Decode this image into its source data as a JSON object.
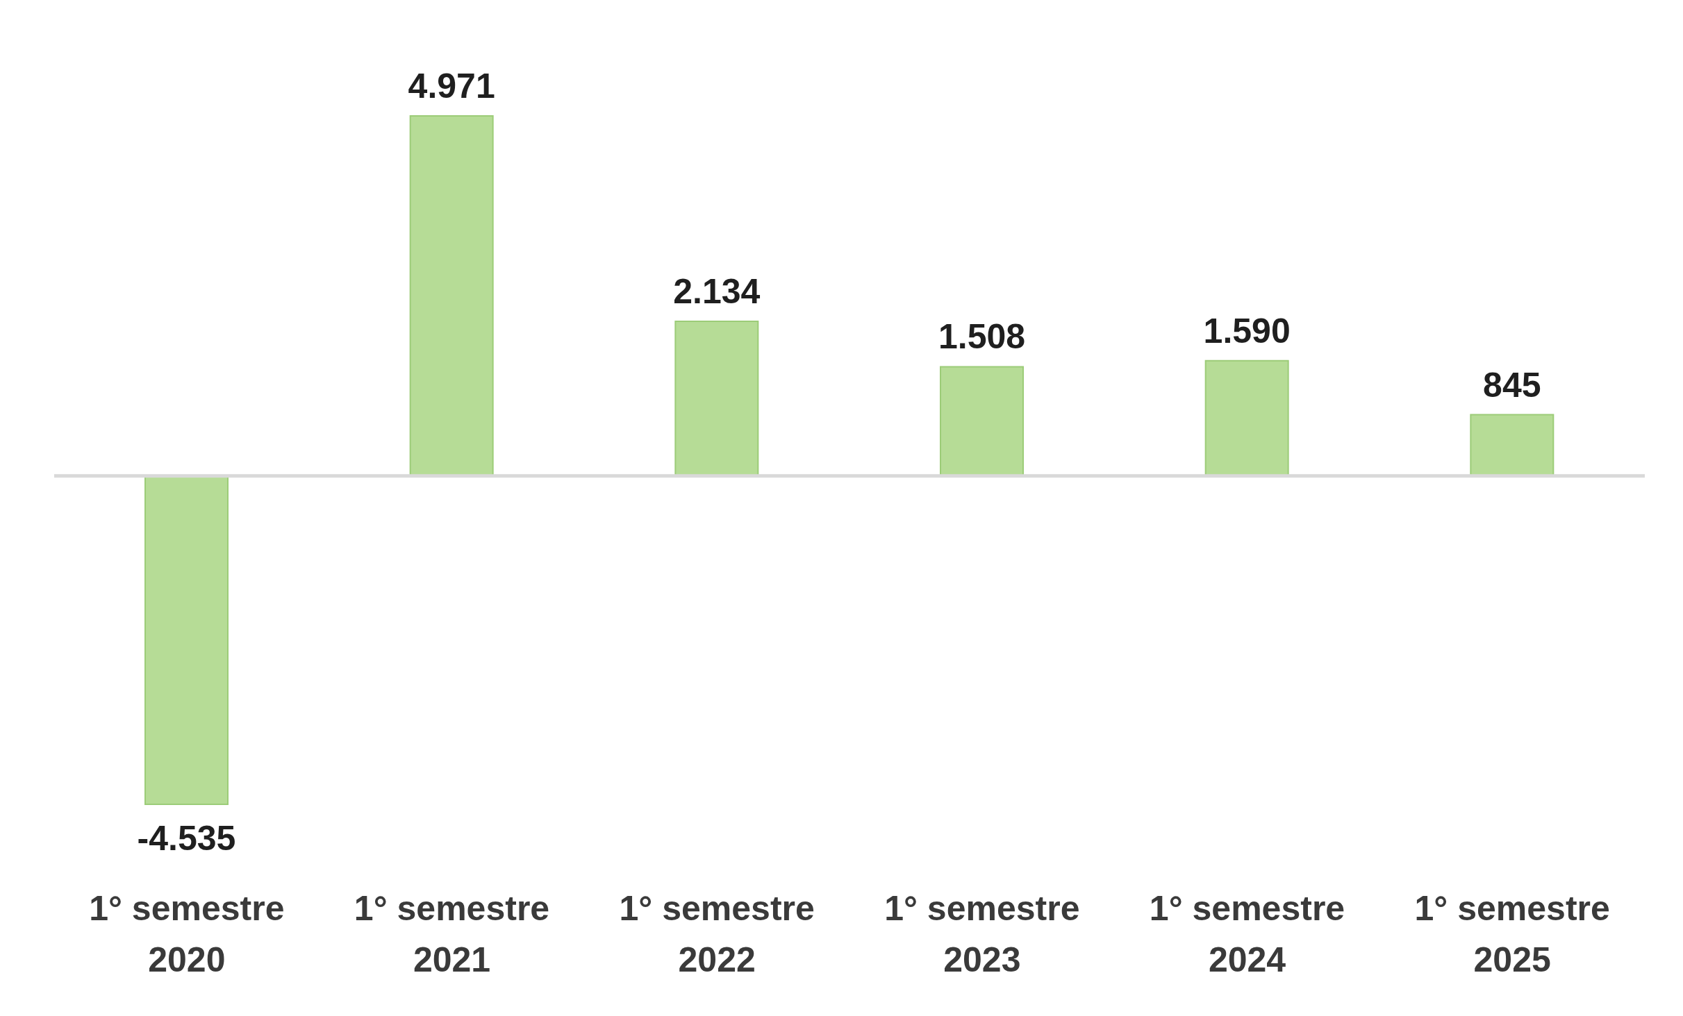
{
  "chart_data": {
    "type": "bar",
    "categories": [
      "1° semestre 2020",
      "1° semestre 2021",
      "1° semestre 2022",
      "1° semestre 2023",
      "1° semestre 2024",
      "1° semestre 2025"
    ],
    "values": [
      -4535,
      4971,
      2134,
      1508,
      1590,
      845
    ],
    "value_labels": [
      "-4.535",
      "4.971",
      "2.134",
      "1.508",
      "1.590",
      "845"
    ],
    "color": "#b6dc96",
    "tick_labels": "x"
  }
}
